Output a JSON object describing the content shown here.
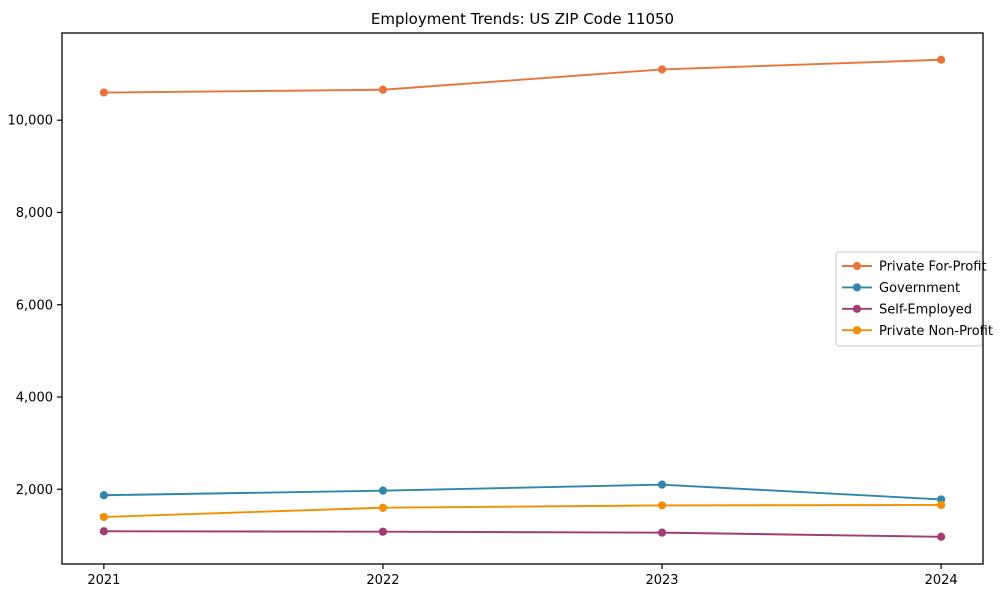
{
  "window": {
    "title": "Employment Trends: US ZIP Code 11050"
  },
  "chart_data": {
    "type": "line",
    "title": "Employment Trends: US ZIP Code 11050",
    "xlabel": "",
    "ylabel": "",
    "grid": false,
    "legend_position": "center-right",
    "x": [
      2021,
      2022,
      2023,
      2024
    ],
    "x_tick_labels": [
      "2021",
      "2022",
      "2023",
      "2024"
    ],
    "y_ticks": [
      {
        "value": 2000,
        "label": "2,000"
      },
      {
        "value": 4000,
        "label": "4,000"
      },
      {
        "value": 6000,
        "label": "6,000"
      },
      {
        "value": 8000,
        "label": "8,000"
      },
      {
        "value": 10000,
        "label": "10,000"
      }
    ],
    "xlim": [
      2020.85,
      2024.15
    ],
    "ylim": [
      380,
      11890
    ],
    "series": [
      {
        "name": "Private For-Profit",
        "color": "#E8743B",
        "values": [
          10600,
          10660,
          11100,
          11310
        ]
      },
      {
        "name": "Government",
        "color": "#2E86AB",
        "values": [
          1870,
          1970,
          2100,
          1780
        ]
      },
      {
        "name": "Self-Employed",
        "color": "#A23B72",
        "values": [
          1090,
          1080,
          1060,
          970
        ]
      },
      {
        "name": "Private Non-Profit",
        "color": "#F18F01",
        "values": [
          1400,
          1600,
          1650,
          1660
        ]
      }
    ],
    "colors": {
      "axis": "#000000",
      "legend_border": "#c9c9c9",
      "background": "#ffffff"
    }
  }
}
